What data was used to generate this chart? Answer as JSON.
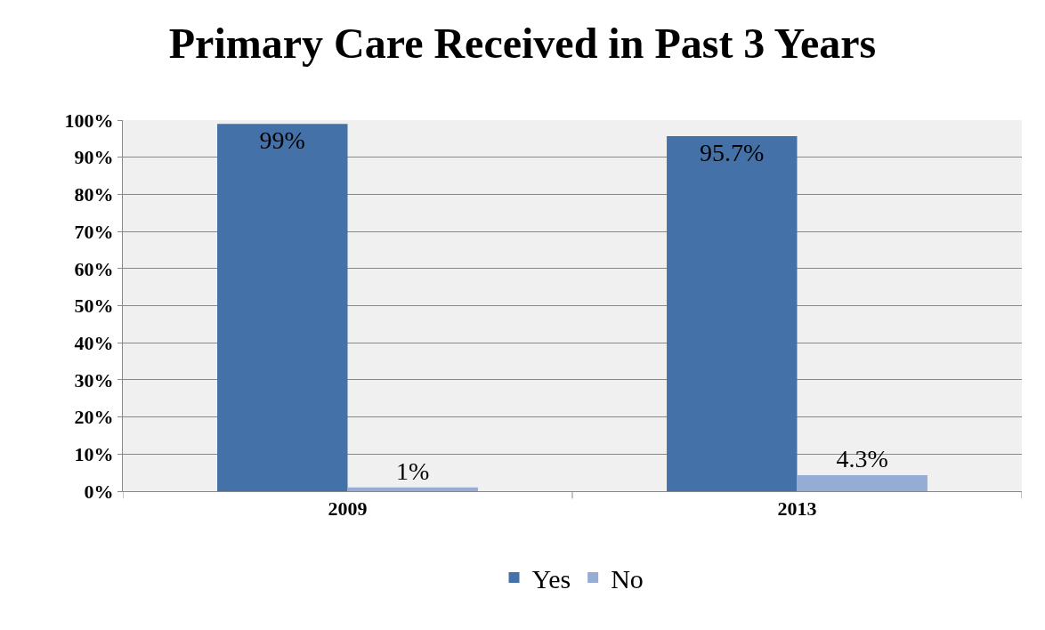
{
  "chart_data": {
    "type": "bar",
    "title": "Primary Care Received in Past 3 Years",
    "categories": [
      "2009",
      "2013"
    ],
    "series": [
      {
        "name": "Yes",
        "color": "#4471a7",
        "values": [
          99,
          95.7
        ],
        "value_labels": [
          "99%",
          "95.7%"
        ]
      },
      {
        "name": "No",
        "color": "#95acd5",
        "values": [
          1,
          4.3
        ],
        "value_labels": [
          "1%",
          "4.3%"
        ]
      }
    ],
    "ylim": [
      0,
      100
    ],
    "yticks": [
      {
        "value": 0,
        "label": "0%"
      },
      {
        "value": 10,
        "label": "10%"
      },
      {
        "value": 20,
        "label": "20%"
      },
      {
        "value": 30,
        "label": "30%"
      },
      {
        "value": 40,
        "label": "40%"
      },
      {
        "value": 50,
        "label": "50%"
      },
      {
        "value": 60,
        "label": "60%"
      },
      {
        "value": 70,
        "label": "70%"
      },
      {
        "value": 80,
        "label": "80%"
      },
      {
        "value": 90,
        "label": "90%"
      },
      {
        "value": 100,
        "label": "100%"
      }
    ],
    "grid": "y",
    "legend": "bottom"
  }
}
